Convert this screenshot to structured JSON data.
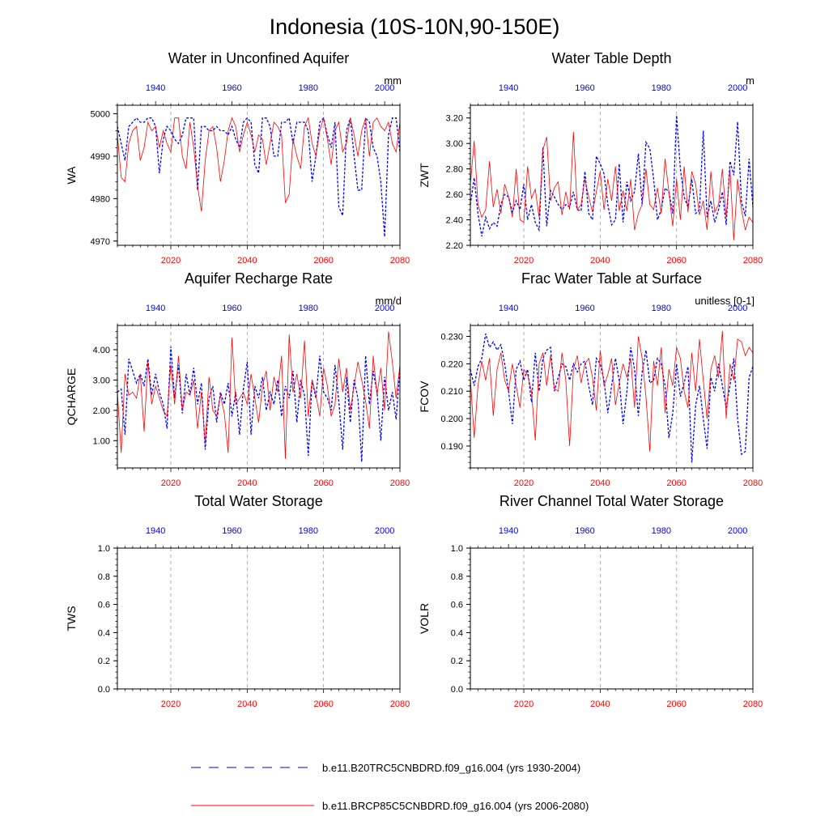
{
  "title": "Indonesia (10S-10N,90-150E)",
  "colors": {
    "blue": "#0000ff",
    "red": "#ff0000",
    "axis": "#000000",
    "grid": "#999999"
  },
  "legend": {
    "blue_label": "b.e11.B20TRC5CNBDRD.f09_g16.004 (yrs 1930-2004)",
    "red_label": "b.e11.BRCP85C5CNBDRD.f09_g16.004 (yrs 2006-2080)"
  },
  "chart_data": [
    {
      "type": "line",
      "title": "Water in Unconfined Aquifer",
      "ylabel": "WA",
      "units": "mm",
      "ylim": [
        4969,
        5002
      ],
      "yticks": [
        4970,
        4980,
        4990,
        5000
      ],
      "ytick_labels": [
        "4970",
        "4980",
        "4990",
        "5000"
      ],
      "xlim_bottom": [
        2006,
        2080
      ],
      "xticks_bottom": [
        2020,
        2040,
        2060,
        2080
      ],
      "xlim_top": [
        1930,
        2004
      ],
      "xticks_top": [
        1940,
        1960,
        1980,
        2000
      ],
      "series": [
        {
          "name": "b.e11.B20TRC5CNBDRD.f09_g16.004",
          "color": "blue",
          "dash": true,
          "x_start": 1930,
          "values": [
            4997,
            4993,
            4989,
            4997,
            4998,
            4999,
            4998,
            4998,
            4999,
            4999,
            4997,
            4986,
            4994,
            4997,
            4996,
            4994,
            4993,
            4995,
            4999,
            4999,
            4999,
            4982,
            4997,
            4997,
            4996,
            4996,
            4997,
            4996,
            4996,
            4995,
            4997,
            4994,
            4992,
            4998,
            4999,
            4998,
            4988,
            4986,
            4999,
            4999,
            4997,
            4990,
            4990,
            4998,
            4998,
            4999,
            4993,
            4998,
            4998,
            4998,
            4996,
            4984,
            4990,
            4998,
            4999,
            4995,
            4992,
            4998,
            4978,
            4976,
            4996,
            4999,
            4990,
            4982,
            4982,
            4999,
            4998,
            4992,
            4990,
            4984,
            4971,
            4995,
            4999,
            4999,
            4991
          ]
        },
        {
          "name": "b.e11.BRCP85C5CNBDRD.f09_g16.004",
          "color": "red",
          "dash": false,
          "x_start": 2006,
          "values": [
            4995,
            4985,
            4984,
            4993,
            4996,
            4997,
            4989,
            4992,
            4998,
            4996,
            4997,
            4992,
            4996,
            4993,
            4991,
            4999,
            4999,
            4990,
            4987,
            4998,
            4992,
            4983,
            4977,
            4989,
            4996,
            4997,
            4992,
            4984,
            4989,
            4996,
            4999,
            4997,
            4991,
            4995,
            4998,
            4995,
            4991,
            4995,
            4994,
            4988,
            4993,
            4998,
            4997,
            4995,
            4979,
            4981,
            4994,
            4990,
            4987,
            4997,
            4999,
            4993,
            4990,
            4996,
            4999,
            4994,
            4988,
            4996,
            4998,
            4991,
            4993,
            4999,
            4995,
            4990,
            4996,
            4999,
            4990,
            4998,
            4999,
            4997,
            4996,
            4998,
            4993,
            4991,
            4998
          ]
        }
      ]
    },
    {
      "type": "line",
      "title": "Water Table Depth",
      "ylabel": "ZWT",
      "units": "m",
      "ylim": [
        2.2,
        3.3
      ],
      "yticks": [
        2.2,
        2.4,
        2.6,
        2.8,
        3.0,
        3.2
      ],
      "ytick_labels": [
        "2.20",
        "2.40",
        "2.60",
        "2.80",
        "3.00",
        "3.20"
      ],
      "xlim_bottom": [
        2006,
        2080
      ],
      "xticks_bottom": [
        2020,
        2040,
        2060,
        2080
      ],
      "xlim_top": [
        1930,
        2004
      ],
      "xticks_top": [
        1940,
        1960,
        1980,
        2000
      ],
      "series": [
        {
          "name": "b.e11.B20TRC5CNBDRD.f09_g16.004",
          "color": "blue",
          "dash": true,
          "x_start": 1930,
          "values": [
            2.52,
            2.73,
            2.45,
            2.27,
            2.42,
            2.33,
            2.38,
            2.35,
            2.52,
            2.6,
            2.58,
            2.46,
            2.55,
            2.48,
            2.68,
            2.4,
            2.52,
            2.38,
            2.32,
            2.97,
            2.35,
            2.63,
            2.58,
            2.52,
            2.48,
            2.52,
            2.5,
            2.62,
            2.48,
            2.47,
            2.78,
            2.45,
            2.4,
            2.9,
            2.84,
            2.76,
            2.52,
            2.36,
            2.4,
            2.84,
            2.38,
            2.7,
            2.55,
            2.62,
            2.92,
            2.52,
            3.01,
            2.96,
            2.72,
            2.4,
            2.48,
            2.65,
            2.62,
            2.45,
            3.22,
            2.8,
            2.58,
            2.5,
            2.72,
            2.45,
            2.48,
            3.1,
            2.42,
            2.55,
            2.38,
            2.48,
            2.62,
            2.36,
            2.86,
            2.75,
            3.17,
            2.54,
            2.43,
            2.88,
            2.5
          ]
        },
        {
          "name": "b.e11.BRCP85C5CNBDRD.f09_g16.004",
          "color": "red",
          "dash": false,
          "x_start": 2006,
          "values": [
            2.68,
            3.02,
            2.52,
            2.42,
            2.48,
            2.86,
            2.5,
            2.64,
            2.45,
            2.68,
            2.58,
            2.42,
            2.8,
            2.4,
            2.38,
            2.82,
            2.57,
            2.64,
            2.42,
            2.95,
            3.05,
            2.55,
            2.65,
            2.7,
            2.44,
            2.62,
            2.48,
            3.09,
            2.48,
            2.52,
            2.72,
            2.58,
            2.46,
            2.62,
            2.78,
            2.48,
            2.72,
            2.55,
            2.82,
            2.47,
            2.63,
            2.47,
            2.72,
            2.32,
            2.45,
            2.52,
            2.8,
            2.52,
            2.48,
            2.65,
            2.45,
            2.88,
            2.62,
            2.35,
            2.72,
            2.4,
            2.82,
            2.46,
            2.78,
            2.68,
            2.44,
            2.55,
            2.32,
            2.78,
            2.46,
            2.52,
            2.8,
            2.42,
            2.8,
            2.24,
            2.72,
            2.48,
            2.32,
            2.42,
            2.38
          ]
        }
      ]
    },
    {
      "type": "line",
      "title": "Aquifer Recharge Rate",
      "ylabel": "QCHARGE",
      "units": "mm/d",
      "ylim": [
        0.1,
        4.8
      ],
      "yticks": [
        1,
        2,
        3,
        4
      ],
      "ytick_labels": [
        "1.00",
        "2.00",
        "3.00",
        "4.00"
      ],
      "xlim_bottom": [
        2006,
        2080
      ],
      "xticks_bottom": [
        2020,
        2040,
        2060,
        2080
      ],
      "xlim_top": [
        1930,
        2004
      ],
      "xticks_top": [
        1940,
        1960,
        1980,
        2000
      ],
      "series": [
        {
          "name": "b.e11.B20TRC5CNBDRD.f09_g16.004",
          "color": "blue",
          "dash": true,
          "x_start": 1930,
          "values": [
            2.6,
            2.7,
            1.2,
            3.7,
            3.3,
            2.9,
            3.2,
            2.8,
            3.7,
            2.5,
            3.2,
            2.6,
            2.2,
            1.4,
            4.1,
            2.4,
            3.5,
            1.9,
            3.2,
            2.5,
            3.4,
            2.2,
            2.9,
            0.7,
            2.4,
            2.8,
            1.6,
            2.6,
            2.2,
            2.9,
            1.8,
            2.6,
            1.2,
            2.7,
            3.6,
            1.2,
            2.8,
            2.4,
            3.1,
            2.0,
            2.6,
            2.2,
            3.0,
            1.8,
            2.8,
            2.4,
            3.3,
            1.6,
            3.0,
            2.5,
            0.5,
            3.0,
            2.4,
            3.8,
            2.6,
            2.4,
            2.0,
            3.5,
            2.3,
            0.7,
            3.1,
            1.6,
            3.0,
            2.4,
            0.3,
            3.8,
            2.2,
            3.3,
            2.6,
            1.0,
            3.1,
            2.0,
            2.6,
            1.7,
            3.4
          ]
        },
        {
          "name": "b.e11.BRCP85C5CNBDRD.f09_g16.004",
          "color": "red",
          "dash": false,
          "x_start": 2006,
          "values": [
            2.6,
            0.6,
            3.2,
            2.5,
            2.6,
            2.4,
            3.2,
            1.3,
            3.6,
            2.2,
            2.8,
            2.4,
            2.0,
            1.8,
            3.5,
            2.2,
            3.8,
            2.0,
            2.6,
            2.5,
            3.0,
            1.4,
            2.6,
            0.9,
            3.1,
            2.0,
            1.8,
            2.5,
            1.9,
            0.6,
            4.4,
            2.2,
            2.4,
            2.6,
            2.2,
            3.2,
            2.4,
            1.6,
            2.8,
            3.3,
            2.0,
            3.1,
            2.6,
            3.8,
            0.4,
            4.5,
            2.6,
            3.2,
            2.4,
            4.3,
            1.8,
            3.0,
            2.5,
            1.8,
            3.4,
            2.8,
            1.8,
            2.2,
            3.7,
            2.6,
            3.4,
            2.0,
            2.8,
            3.6,
            3.0,
            2.3,
            1.4,
            3.8,
            2.5,
            3.4,
            2.0,
            4.6,
            3.6,
            2.4,
            3.5
          ]
        }
      ]
    },
    {
      "type": "line",
      "title": "Frac Water Table at Surface",
      "ylabel": "FCOV",
      "units": "unitless [0-1]",
      "ylim": [
        0.182,
        0.234
      ],
      "yticks": [
        0.19,
        0.2,
        0.21,
        0.22,
        0.23
      ],
      "ytick_labels": [
        "0.190",
        "0.200",
        "0.210",
        "0.220",
        "0.230"
      ],
      "xlim_bottom": [
        2006,
        2080
      ],
      "xticks_bottom": [
        2020,
        2040,
        2060,
        2080
      ],
      "xlim_top": [
        1930,
        2004
      ],
      "xticks_top": [
        1940,
        1960,
        1980,
        2000
      ],
      "series": [
        {
          "name": "b.e11.B20TRC5CNBDRD.f09_g16.004",
          "color": "blue",
          "dash": true,
          "x_start": 1930,
          "values": [
            0.218,
            0.212,
            0.219,
            0.222,
            0.231,
            0.226,
            0.228,
            0.225,
            0.227,
            0.22,
            0.21,
            0.198,
            0.218,
            0.221,
            0.214,
            0.218,
            0.206,
            0.224,
            0.21,
            0.222,
            0.225,
            0.226,
            0.21,
            0.215,
            0.22,
            0.219,
            0.214,
            0.22,
            0.217,
            0.22,
            0.221,
            0.212,
            0.205,
            0.222,
            0.22,
            0.214,
            0.202,
            0.212,
            0.222,
            0.214,
            0.198,
            0.21,
            0.226,
            0.218,
            0.201,
            0.217,
            0.225,
            0.213,
            0.214,
            0.222,
            0.22,
            0.212,
            0.193,
            0.202,
            0.22,
            0.208,
            0.213,
            0.219,
            0.184,
            0.205,
            0.212,
            0.2,
            0.189,
            0.215,
            0.21,
            0.22,
            0.212,
            0.204,
            0.212,
            0.222,
            0.2,
            0.187,
            0.188,
            0.215,
            0.219
          ]
        },
        {
          "name": "b.e11.BRCP85C5CNBDRD.f09_g16.004",
          "color": "red",
          "dash": false,
          "x_start": 2006,
          "values": [
            0.215,
            0.193,
            0.212,
            0.221,
            0.214,
            0.222,
            0.201,
            0.218,
            0.224,
            0.214,
            0.21,
            0.22,
            0.212,
            0.204,
            0.218,
            0.216,
            0.21,
            0.192,
            0.22,
            0.224,
            0.212,
            0.223,
            0.211,
            0.21,
            0.224,
            0.214,
            0.19,
            0.218,
            0.223,
            0.213,
            0.22,
            0.222,
            0.215,
            0.203,
            0.225,
            0.212,
            0.216,
            0.222,
            0.205,
            0.213,
            0.22,
            0.215,
            0.222,
            0.204,
            0.23,
            0.222,
            0.208,
            0.188,
            0.221,
            0.212,
            0.226,
            0.202,
            0.218,
            0.212,
            0.226,
            0.222,
            0.21,
            0.204,
            0.224,
            0.21,
            0.229,
            0.214,
            0.2,
            0.218,
            0.223,
            0.215,
            0.232,
            0.2,
            0.22,
            0.214,
            0.229,
            0.228,
            0.223,
            0.226,
            0.224
          ]
        }
      ]
    },
    {
      "type": "line",
      "title": "Total Water Storage",
      "ylabel": "TWS",
      "units": "",
      "ylim": [
        0,
        1
      ],
      "yticks": [
        0,
        0.2,
        0.4,
        0.6,
        0.8,
        1.0
      ],
      "ytick_labels": [
        "0.0",
        "0.2",
        "0.4",
        "0.6",
        "0.8",
        "1.0"
      ],
      "xlim_bottom": [
        2006,
        2080
      ],
      "xticks_bottom": [
        2020,
        2040,
        2060,
        2080
      ],
      "xlim_top": [
        1930,
        2004
      ],
      "xticks_top": [
        1940,
        1960,
        1980,
        2000
      ],
      "series": []
    },
    {
      "type": "line",
      "title": "River Channel Total Water Storage",
      "ylabel": "VOLR",
      "units": "",
      "ylim": [
        0,
        1
      ],
      "yticks": [
        0,
        0.2,
        0.4,
        0.6,
        0.8,
        1.0
      ],
      "ytick_labels": [
        "0.0",
        "0.2",
        "0.4",
        "0.6",
        "0.8",
        "1.0"
      ],
      "xlim_bottom": [
        2006,
        2080
      ],
      "xticks_bottom": [
        2020,
        2040,
        2060,
        2080
      ],
      "xlim_top": [
        1930,
        2004
      ],
      "xticks_top": [
        1940,
        1960,
        1980,
        2000
      ],
      "series": []
    }
  ]
}
